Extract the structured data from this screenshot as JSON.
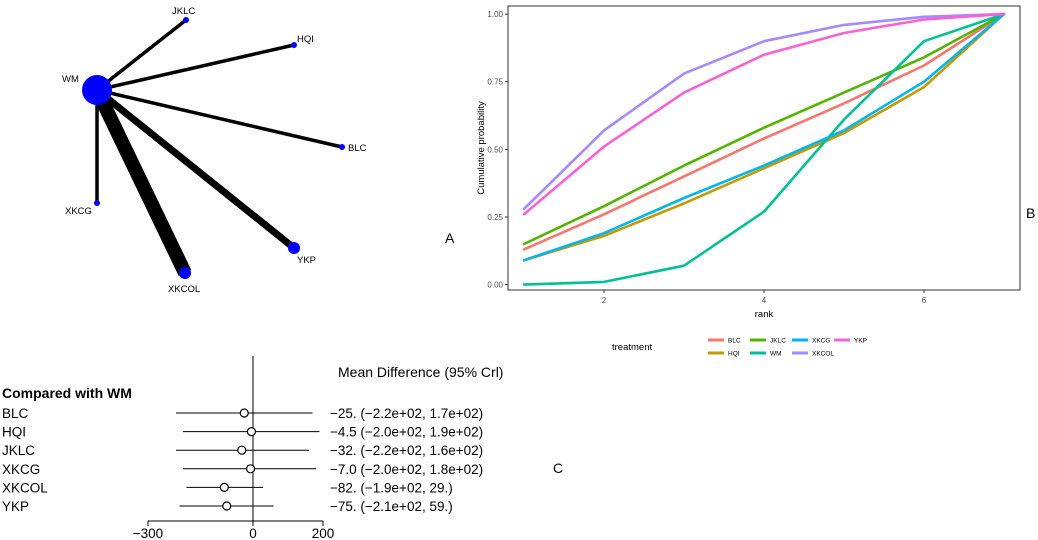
{
  "panel_labels": {
    "a": "A",
    "b": "B",
    "c": "C"
  },
  "chart_data": [
    {
      "type": "network",
      "panel": "A",
      "center_node": "WM",
      "nodes": [
        {
          "name": "WM",
          "size": "large"
        },
        {
          "name": "JKLC",
          "size": "small"
        },
        {
          "name": "HQI",
          "size": "small"
        },
        {
          "name": "BLC",
          "size": "small"
        },
        {
          "name": "YKP",
          "size": "medium"
        },
        {
          "name": "XKCOL",
          "size": "medium"
        },
        {
          "name": "XKCG",
          "size": "small"
        }
      ],
      "edges": [
        {
          "from": "WM",
          "to": "JKLC",
          "weight": 1
        },
        {
          "from": "WM",
          "to": "HQI",
          "weight": 1
        },
        {
          "from": "WM",
          "to": "BLC",
          "weight": 1
        },
        {
          "from": "WM",
          "to": "YKP",
          "weight": 2
        },
        {
          "from": "WM",
          "to": "XKCOL",
          "weight": 4
        },
        {
          "from": "WM",
          "to": "XKCG",
          "weight": 1
        }
      ]
    },
    {
      "type": "line",
      "panel": "B",
      "xlabel": "rank",
      "ylabel": "Cumulative probability",
      "x": [
        1,
        2,
        3,
        4,
        5,
        6,
        7
      ],
      "xlim": [
        0.8,
        7.2
      ],
      "ylim": [
        -0.02,
        1.03
      ],
      "xticks": [
        2,
        4,
        6
      ],
      "yticks": [
        0,
        0.25,
        0.5,
        0.75,
        1
      ],
      "ytick_labels": [
        "0.00",
        "0.25",
        "0.50",
        "0.75",
        "1.00"
      ],
      "legend_title": "treatment",
      "legend_position": "bottom",
      "series": [
        {
          "name": "BLC",
          "color": "#F8766D",
          "values": [
            0.13,
            0.26,
            0.4,
            0.54,
            0.67,
            0.81,
            1.0
          ]
        },
        {
          "name": "HQI",
          "color": "#C49A00",
          "values": [
            0.09,
            0.18,
            0.3,
            0.43,
            0.56,
            0.73,
            1.0
          ]
        },
        {
          "name": "JKLC",
          "color": "#53B400",
          "values": [
            0.15,
            0.29,
            0.44,
            0.58,
            0.71,
            0.84,
            1.0
          ]
        },
        {
          "name": "WM",
          "color": "#00C094",
          "values": [
            0.0,
            0.01,
            0.07,
            0.27,
            0.61,
            0.9,
            1.0
          ]
        },
        {
          "name": "XKCG",
          "color": "#00B6EB",
          "values": [
            0.09,
            0.19,
            0.32,
            0.44,
            0.57,
            0.75,
            1.0
          ]
        },
        {
          "name": "XKCOL",
          "color": "#A58AFF",
          "values": [
            0.28,
            0.57,
            0.78,
            0.9,
            0.96,
            0.99,
            1.0
          ]
        },
        {
          "name": "YKP",
          "color": "#FB61D7",
          "values": [
            0.26,
            0.51,
            0.71,
            0.85,
            0.93,
            0.98,
            1.0
          ]
        }
      ]
    },
    {
      "type": "forest",
      "panel": "C",
      "title": "Mean Difference (95% Crl)",
      "compared_label": "Compared with WM",
      "xlim": [
        -300,
        200
      ],
      "xticks": [
        -300,
        0,
        200
      ],
      "xtick_labels": [
        "−300",
        "0",
        "200"
      ],
      "rows": [
        {
          "name": "BLC",
          "mean": -25,
          "lower": -220,
          "upper": 170,
          "label": "−25. (−2.2e+02, 1.7e+02)"
        },
        {
          "name": "HQI",
          "mean": -4.5,
          "lower": -200,
          "upper": 190,
          "label": "−4.5 (−2.0e+02, 1.9e+02)"
        },
        {
          "name": "JKLC",
          "mean": -32,
          "lower": -220,
          "upper": 160,
          "label": "−32. (−2.2e+02, 1.6e+02)"
        },
        {
          "name": "XKCG",
          "mean": -7.0,
          "lower": -200,
          "upper": 180,
          "label": "−7.0 (−2.0e+02, 1.8e+02)"
        },
        {
          "name": "XKCOL",
          "mean": -82,
          "lower": -190,
          "upper": 29,
          "label": "−82. (−1.9e+02,  29.)"
        },
        {
          "name": "YKP",
          "mean": -75,
          "lower": -210,
          "upper": 59,
          "label": "−75. (−2.1e+02,  59.)"
        }
      ]
    }
  ]
}
